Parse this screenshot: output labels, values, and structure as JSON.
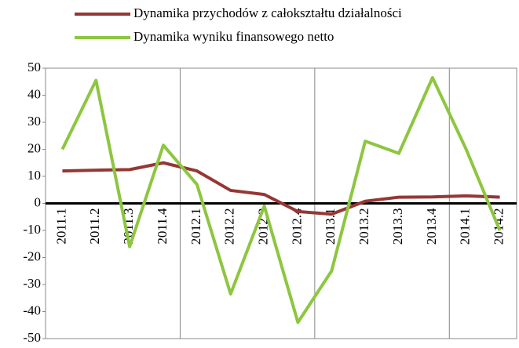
{
  "chart_data": {
    "type": "line",
    "categories": [
      "2011.1",
      "2011.2",
      "2011.3",
      "2011.4",
      "2012.1",
      "2012.2",
      "2012.3",
      "2012.4",
      "2013.1",
      "2013.2",
      "2013.3",
      "2013.4",
      "2014.1",
      "2014.2"
    ],
    "series": [
      {
        "name": "Dynamika przychodów z całokształtu działalności",
        "color": "#953735",
        "values": [
          12,
          12.3,
          12.5,
          15,
          12,
          4.8,
          3.3,
          -3,
          -4,
          0.8,
          2.3,
          2.4,
          2.8,
          2.3
        ]
      },
      {
        "name": "Dynamika wyniku finansowego netto",
        "color": "#8dc63f",
        "values": [
          20,
          45.5,
          -16,
          21.5,
          7,
          -33.5,
          -1,
          -44,
          -25,
          23,
          18.5,
          46.5,
          20,
          -10
        ]
      }
    ],
    "ylim": [
      -50,
      50
    ],
    "yticks": [
      -50,
      -40,
      -30,
      -20,
      -10,
      0,
      10,
      20,
      30,
      40,
      50
    ],
    "legend": "top"
  }
}
